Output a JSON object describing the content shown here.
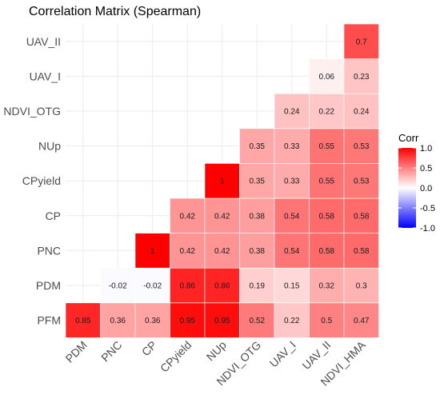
{
  "chart_data": {
    "type": "heatmap",
    "title": "Correlation Matrix (Spearman)",
    "x_categories": [
      "PDM",
      "PNC",
      "CP",
      "CPyield",
      "NUp",
      "NDVI_OTG",
      "UAV_I",
      "UAV_II",
      "NDVI_HMA"
    ],
    "y_categories": [
      "PFM",
      "PDM",
      "PNC",
      "CP",
      "CPyield",
      "NUp",
      "NDVI_OTG",
      "UAV_I",
      "UAV_II"
    ],
    "cells": [
      {
        "y": "PFM",
        "x": "PDM",
        "value": 0.85,
        "label": "0.85"
      },
      {
        "y": "PFM",
        "x": "PNC",
        "value": 0.36,
        "label": "0.36"
      },
      {
        "y": "PFM",
        "x": "CP",
        "value": 0.36,
        "label": "0.36"
      },
      {
        "y": "PFM",
        "x": "CPyield",
        "value": 0.95,
        "label": "0.95"
      },
      {
        "y": "PFM",
        "x": "NUp",
        "value": 0.95,
        "label": "0.95"
      },
      {
        "y": "PFM",
        "x": "NDVI_OTG",
        "value": 0.52,
        "label": "0.52"
      },
      {
        "y": "PFM",
        "x": "UAV_I",
        "value": 0.22,
        "label": "0.22"
      },
      {
        "y": "PFM",
        "x": "UAV_II",
        "value": 0.5,
        "label": "0.5"
      },
      {
        "y": "PFM",
        "x": "NDVI_HMA",
        "value": 0.47,
        "label": "0.47"
      },
      {
        "y": "PDM",
        "x": "PNC",
        "value": -0.02,
        "label": "-0.02"
      },
      {
        "y": "PDM",
        "x": "CP",
        "value": -0.02,
        "label": "-0.02"
      },
      {
        "y": "PDM",
        "x": "CPyield",
        "value": 0.86,
        "label": "0.86"
      },
      {
        "y": "PDM",
        "x": "NUp",
        "value": 0.86,
        "label": "0.86"
      },
      {
        "y": "PDM",
        "x": "NDVI_OTG",
        "value": 0.19,
        "label": "0.19"
      },
      {
        "y": "PDM",
        "x": "UAV_I",
        "value": 0.15,
        "label": "0.15"
      },
      {
        "y": "PDM",
        "x": "UAV_II",
        "value": 0.32,
        "label": "0.32"
      },
      {
        "y": "PDM",
        "x": "NDVI_HMA",
        "value": 0.3,
        "label": "0.3"
      },
      {
        "y": "PNC",
        "x": "CP",
        "value": 1,
        "label": "1"
      },
      {
        "y": "PNC",
        "x": "CPyield",
        "value": 0.42,
        "label": "0.42"
      },
      {
        "y": "PNC",
        "x": "NUp",
        "value": 0.42,
        "label": "0.42"
      },
      {
        "y": "PNC",
        "x": "NDVI_OTG",
        "value": 0.38,
        "label": "0.38"
      },
      {
        "y": "PNC",
        "x": "UAV_I",
        "value": 0.54,
        "label": "0.54"
      },
      {
        "y": "PNC",
        "x": "UAV_II",
        "value": 0.58,
        "label": "0.58"
      },
      {
        "y": "PNC",
        "x": "NDVI_HMA",
        "value": 0.58,
        "label": "0.58"
      },
      {
        "y": "CP",
        "x": "CPyield",
        "value": 0.42,
        "label": "0.42"
      },
      {
        "y": "CP",
        "x": "NUp",
        "value": 0.42,
        "label": "0.42"
      },
      {
        "y": "CP",
        "x": "NDVI_OTG",
        "value": 0.38,
        "label": "0.38"
      },
      {
        "y": "CP",
        "x": "UAV_I",
        "value": 0.54,
        "label": "0.54"
      },
      {
        "y": "CP",
        "x": "UAV_II",
        "value": 0.58,
        "label": "0.58"
      },
      {
        "y": "CP",
        "x": "NDVI_HMA",
        "value": 0.58,
        "label": "0.58"
      },
      {
        "y": "CPyield",
        "x": "NUp",
        "value": 1,
        "label": "1"
      },
      {
        "y": "CPyield",
        "x": "NDVI_OTG",
        "value": 0.35,
        "label": "0.35"
      },
      {
        "y": "CPyield",
        "x": "UAV_I",
        "value": 0.33,
        "label": "0.33"
      },
      {
        "y": "CPyield",
        "x": "UAV_II",
        "value": 0.55,
        "label": "0.55"
      },
      {
        "y": "CPyield",
        "x": "NDVI_HMA",
        "value": 0.53,
        "label": "0.53"
      },
      {
        "y": "NUp",
        "x": "NDVI_OTG",
        "value": 0.35,
        "label": "0.35"
      },
      {
        "y": "NUp",
        "x": "UAV_I",
        "value": 0.33,
        "label": "0.33"
      },
      {
        "y": "NUp",
        "x": "UAV_II",
        "value": 0.55,
        "label": "0.55"
      },
      {
        "y": "NUp",
        "x": "NDVI_HMA",
        "value": 0.53,
        "label": "0.53"
      },
      {
        "y": "NDVI_OTG",
        "x": "UAV_I",
        "value": 0.24,
        "label": "0.24"
      },
      {
        "y": "NDVI_OTG",
        "x": "UAV_II",
        "value": 0.22,
        "label": "0.22"
      },
      {
        "y": "NDVI_OTG",
        "x": "NDVI_HMA",
        "value": 0.24,
        "label": "0.24"
      },
      {
        "y": "UAV_I",
        "x": "UAV_II",
        "value": 0.06,
        "label": "0.06"
      },
      {
        "y": "UAV_I",
        "x": "NDVI_HMA",
        "value": 0.23,
        "label": "0.23"
      },
      {
        "y": "UAV_II",
        "x": "NDVI_HMA",
        "value": 0.7,
        "label": "0.7"
      }
    ],
    "legend": {
      "title": "Corr",
      "ticks": [
        {
          "value": 1.0,
          "label": "1.0"
        },
        {
          "value": 0.5,
          "label": "0.5"
        },
        {
          "value": 0.0,
          "label": "0.0"
        },
        {
          "value": -0.5,
          "label": "-0.5"
        },
        {
          "value": -1.0,
          "label": "-1.0"
        }
      ],
      "limits": [
        -1,
        1
      ],
      "position": "right"
    },
    "colors": {
      "low": "#0000ff",
      "mid": "#ffffff",
      "high": "#ff0000"
    },
    "grid": true
  }
}
